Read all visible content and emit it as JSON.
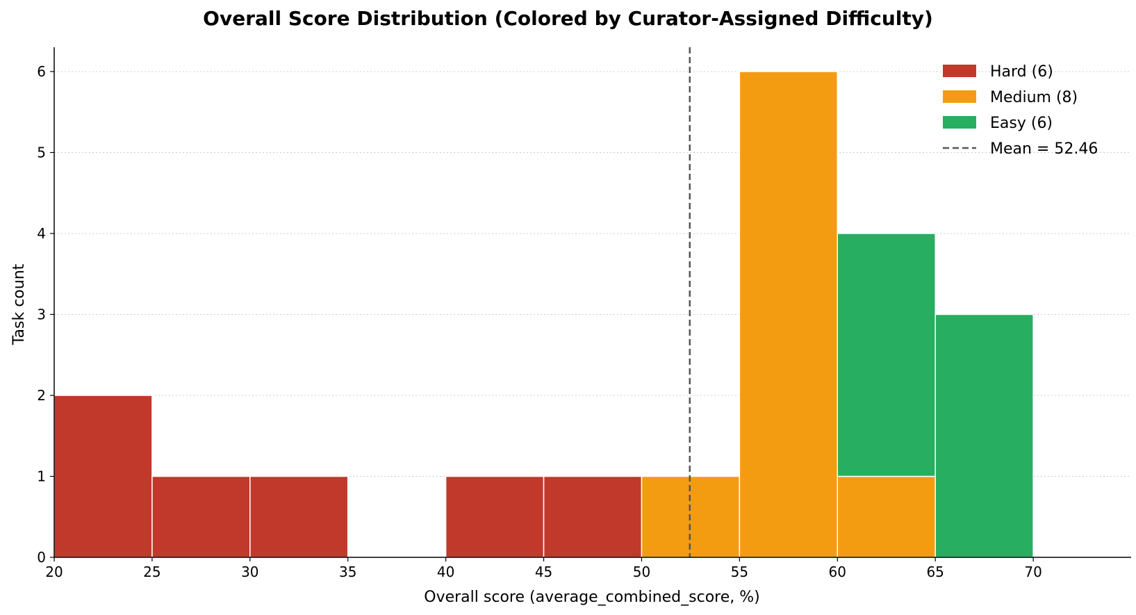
{
  "chart_data": {
    "type": "bar",
    "title": "Overall Score Distribution (Colored by Curator-Assigned Difficulty)",
    "xlabel": "Overall score (average_combined_score, %)",
    "ylabel": "Task count",
    "xlim": [
      20,
      75
    ],
    "ylim": [
      0,
      6.3
    ],
    "x_ticks": [
      20,
      25,
      30,
      35,
      40,
      45,
      50,
      55,
      60,
      65,
      70
    ],
    "y_ticks": [
      0,
      1,
      2,
      3,
      4,
      5,
      6
    ],
    "grid": "horizontal-dotted",
    "legend_position": "top-right",
    "bin_edges": [
      20,
      25,
      30,
      35,
      40,
      45,
      50,
      55,
      60,
      65,
      70
    ],
    "stacked": true,
    "series": [
      {
        "name": "Hard (6)",
        "color": "#c0392b",
        "values": [
          2,
          1,
          1,
          0,
          1,
          1,
          0,
          0,
          0,
          0
        ]
      },
      {
        "name": "Medium (8)",
        "color": "#f39c12",
        "values": [
          0,
          0,
          0,
          0,
          0,
          0,
          1,
          6,
          1,
          0
        ]
      },
      {
        "name": "Easy (6)",
        "color": "#27ae60",
        "values": [
          0,
          0,
          0,
          0,
          0,
          0,
          0,
          0,
          3,
          3
        ]
      }
    ],
    "mean_line": {
      "label": "Mean = 52.46",
      "value": 52.46,
      "color": "#555555"
    }
  }
}
